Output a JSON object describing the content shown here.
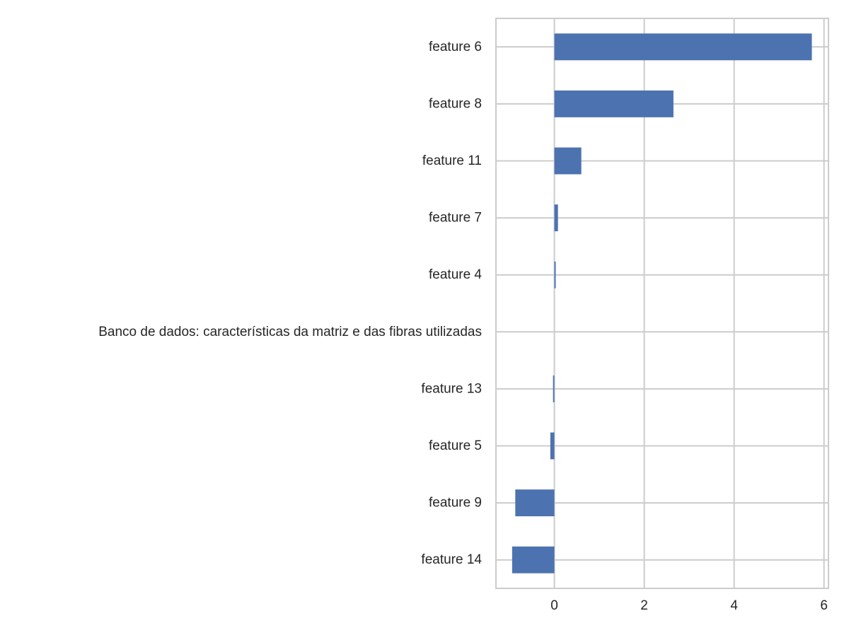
{
  "chart_data": {
    "type": "bar",
    "orientation": "horizontal",
    "title": "",
    "xlabel": "",
    "ylabel": "",
    "categories": [
      "feature 6",
      "feature 8",
      "feature 11",
      "feature 7",
      "feature 4",
      "Banco de dados: características da matriz e das fibras utilizadas",
      "feature 13",
      "feature 5",
      "feature 9",
      "feature 14"
    ],
    "values": [
      5.73,
      2.65,
      0.6,
      0.08,
      0.03,
      0.0,
      -0.03,
      -0.09,
      -0.87,
      -0.94
    ],
    "xlim": [
      -1.3,
      6.1
    ],
    "xticks": [
      0,
      2,
      4,
      6
    ],
    "xtick_labels": [
      "0",
      "2",
      "4",
      "6"
    ],
    "grid": true,
    "legend": "none",
    "colors": {
      "bar": "#4c72b0",
      "grid": "#cccccc",
      "spine": "#cccccc",
      "text": "#262626",
      "background": "#ffffff"
    }
  }
}
